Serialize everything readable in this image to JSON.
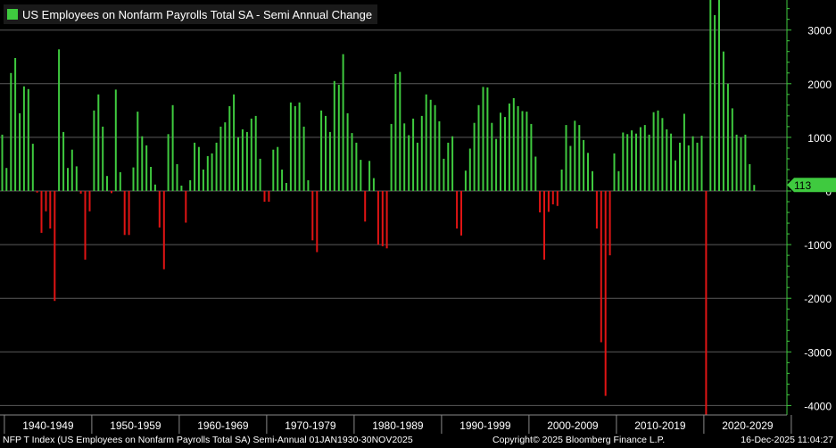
{
  "chart_data": {
    "type": "bar",
    "title": "US Employees on Nonfarm Payrolls Total SA - Semi Annual Change",
    "legend": "US Employees on Nonfarm Payrolls Total SA - Semi Annual Change",
    "legend_position": "top-left",
    "y_ticks": [
      -4000,
      -3000,
      -2000,
      -1000,
      0,
      1000,
      2000,
      3000
    ],
    "y_tick_labels": [
      "-4000",
      "-3000",
      "-2000",
      "-1000",
      "0",
      "1000",
      "2000",
      "3000"
    ],
    "ylim": [
      -4200,
      3600
    ],
    "x_range_years": [
      1939.5,
      2029.5
    ],
    "decade_labels": [
      "1940-1949",
      "1950-1959",
      "1960-1969",
      "1970-1979",
      "1980-1989",
      "1990-1999",
      "2000-2009",
      "2010-2019",
      "2020-2029"
    ],
    "last_value_label": "113",
    "colors": {
      "positive": "#3fca3f",
      "negative": "#e01414",
      "grid": "#5a5a5a",
      "axis": "#3fca3f",
      "background": "#000000"
    },
    "values": [
      1050,
      430,
      2200,
      2480,
      1450,
      1950,
      1900,
      880,
      -30,
      -780,
      -380,
      -700,
      -2050,
      2640,
      1100,
      430,
      770,
      460,
      -50,
      -1280,
      -380,
      1500,
      1800,
      1200,
      280,
      -40,
      1890,
      350,
      -820,
      -820,
      440,
      1480,
      1020,
      850,
      450,
      120,
      -680,
      -1460,
      1060,
      1600,
      500,
      100,
      -590,
      200,
      900,
      820,
      400,
      650,
      700,
      900,
      1200,
      1280,
      1580,
      1800,
      1000,
      1150,
      1100,
      1350,
      1400,
      600,
      -200,
      -200,
      770,
      820,
      400,
      150,
      1650,
      1580,
      1650,
      1200,
      200,
      -920,
      -1140,
      1500,
      1400,
      1100,
      2050,
      1980,
      2550,
      1450,
      1080,
      900,
      580,
      -570,
      560,
      240,
      -1000,
      -1030,
      -1070,
      1250,
      2180,
      2220,
      1260,
      1040,
      1350,
      900,
      1400,
      1800,
      1700,
      1600,
      1300,
      600,
      900,
      1020,
      -700,
      -830,
      380,
      790,
      1270,
      1600,
      1940,
      1930,
      1270,
      970,
      1460,
      1380,
      1630,
      1730,
      1580,
      1490,
      1480,
      1250,
      640,
      -400,
      -1280,
      -390,
      -250,
      -280,
      400,
      1230,
      840,
      1310,
      1230,
      950,
      710,
      370,
      -700,
      -2820,
      -3820,
      -1200,
      700,
      370,
      1090,
      1060,
      1130,
      1070,
      1190,
      1230,
      1050,
      1470,
      1500,
      1360,
      1150,
      1070,
      570,
      900,
      1440,
      850,
      1020,
      900,
      1030,
      -4200,
      3600,
      3280,
      3600,
      2600,
      2000,
      1540,
      1050,
      1000,
      1050,
      500,
      113
    ],
    "values_note": "semi-annual change in thousands; bars from 1939 H2 through 2025 H2"
  },
  "footer": {
    "left": "NFP T Index (US Employees on Nonfarm Payrolls Total SA) Semi-Annual 01JAN1930-30NOV2025",
    "center": "Copyright© 2025 Bloomberg Finance L.P.",
    "right": "16-Dec-2025 11:04:27"
  }
}
